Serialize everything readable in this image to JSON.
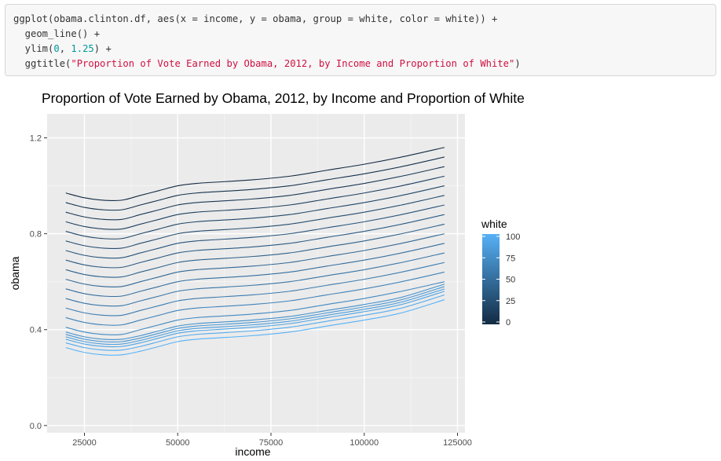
{
  "code": {
    "lines": [
      [
        {
          "t": "ggplot(obama.clinton.df, aes(x = income, y = obama, group = white, color = white)) +",
          "k": "plain"
        }
      ],
      [
        {
          "t": "  geom_line() +",
          "k": "plain"
        }
      ],
      [
        {
          "t": "  ylim(",
          "k": "plain"
        },
        {
          "t": "0",
          "k": "num"
        },
        {
          "t": ", ",
          "k": "plain"
        },
        {
          "t": "1.25",
          "k": "num"
        },
        {
          "t": ") +",
          "k": "plain"
        }
      ],
      [
        {
          "t": "  ggtitle(",
          "k": "plain"
        },
        {
          "t": "\"Proportion of Vote Earned by Obama, 2012, by Income and Proportion of White\"",
          "k": "str"
        },
        {
          "t": ")",
          "k": "plain"
        }
      ]
    ]
  },
  "colors": {
    "panel_bg": "#ebebeb",
    "grid_major": "#ffffff",
    "grid_minor": "#f5f5f5",
    "line_low": "#132b43",
    "line_high": "#56b1f7",
    "axis_text": "#4d4d4d"
  },
  "chart_data": {
    "type": "line",
    "title": "Proportion of Vote Earned by Obama, 2012, by Income and Proportion of White",
    "xlabel": "income",
    "ylabel": "obama",
    "xlim": [
      15000,
      127000
    ],
    "ylim": [
      -0.03,
      1.3
    ],
    "x_ticks": [
      25000,
      50000,
      75000,
      100000,
      125000
    ],
    "x_tick_labels": [
      "25000",
      "50000",
      "75000",
      "100000",
      "125000"
    ],
    "y_ticks": [
      0.0,
      0.4,
      0.8,
      1.2
    ],
    "y_tick_labels": [
      "0.0",
      "0.4",
      "0.8",
      "1.2"
    ],
    "grid": true,
    "legend": {
      "title": "white",
      "position": "right",
      "ticks": [
        0,
        25,
        50,
        75,
        100
      ],
      "tick_labels": [
        "0",
        "25",
        "50",
        "75",
        "100"
      ]
    },
    "x": [
      20000,
      25000,
      30000,
      35000,
      40000,
      45000,
      50000,
      55000,
      60000,
      70000,
      80000,
      90000,
      100000,
      110000,
      121500
    ],
    "series": [
      {
        "white": 0,
        "values": [
          0.97,
          0.95,
          0.94,
          0.94,
          0.96,
          0.98,
          1.0,
          1.01,
          1.015,
          1.025,
          1.04,
          1.065,
          1.09,
          1.12,
          1.16
        ]
      },
      {
        "white": 5,
        "values": [
          0.93,
          0.91,
          0.9,
          0.9,
          0.92,
          0.94,
          0.96,
          0.97,
          0.975,
          0.985,
          1.0,
          1.025,
          1.05,
          1.08,
          1.12
        ]
      },
      {
        "white": 10,
        "values": [
          0.89,
          0.87,
          0.86,
          0.86,
          0.88,
          0.9,
          0.92,
          0.93,
          0.935,
          0.945,
          0.96,
          0.985,
          1.01,
          1.04,
          1.08
        ]
      },
      {
        "white": 15,
        "values": [
          0.85,
          0.83,
          0.82,
          0.82,
          0.84,
          0.86,
          0.88,
          0.89,
          0.895,
          0.905,
          0.92,
          0.945,
          0.97,
          1.0,
          1.04
        ]
      },
      {
        "white": 20,
        "values": [
          0.81,
          0.79,
          0.78,
          0.78,
          0.8,
          0.82,
          0.84,
          0.85,
          0.855,
          0.865,
          0.88,
          0.905,
          0.93,
          0.96,
          1.0
        ]
      },
      {
        "white": 25,
        "values": [
          0.77,
          0.75,
          0.74,
          0.74,
          0.76,
          0.78,
          0.8,
          0.81,
          0.815,
          0.825,
          0.84,
          0.865,
          0.89,
          0.92,
          0.96
        ]
      },
      {
        "white": 30,
        "values": [
          0.73,
          0.71,
          0.7,
          0.7,
          0.72,
          0.74,
          0.76,
          0.77,
          0.775,
          0.785,
          0.8,
          0.825,
          0.85,
          0.88,
          0.92
        ]
      },
      {
        "white": 35,
        "values": [
          0.69,
          0.67,
          0.66,
          0.66,
          0.68,
          0.7,
          0.72,
          0.73,
          0.735,
          0.745,
          0.76,
          0.785,
          0.81,
          0.84,
          0.88
        ]
      },
      {
        "white": 40,
        "values": [
          0.65,
          0.63,
          0.62,
          0.62,
          0.64,
          0.66,
          0.68,
          0.69,
          0.695,
          0.705,
          0.72,
          0.745,
          0.77,
          0.8,
          0.84
        ]
      },
      {
        "white": 45,
        "values": [
          0.61,
          0.59,
          0.58,
          0.58,
          0.6,
          0.62,
          0.64,
          0.65,
          0.655,
          0.665,
          0.68,
          0.705,
          0.73,
          0.76,
          0.8
        ]
      },
      {
        "white": 50,
        "values": [
          0.57,
          0.55,
          0.54,
          0.54,
          0.56,
          0.58,
          0.6,
          0.61,
          0.615,
          0.625,
          0.64,
          0.665,
          0.69,
          0.72,
          0.76
        ]
      },
      {
        "white": 55,
        "values": [
          0.53,
          0.51,
          0.5,
          0.5,
          0.52,
          0.54,
          0.56,
          0.57,
          0.575,
          0.585,
          0.6,
          0.625,
          0.65,
          0.68,
          0.72
        ]
      },
      {
        "white": 60,
        "values": [
          0.49,
          0.47,
          0.46,
          0.46,
          0.48,
          0.5,
          0.52,
          0.53,
          0.535,
          0.545,
          0.56,
          0.585,
          0.61,
          0.64,
          0.68
        ]
      },
      {
        "white": 65,
        "values": [
          0.45,
          0.43,
          0.42,
          0.42,
          0.44,
          0.46,
          0.48,
          0.49,
          0.495,
          0.505,
          0.52,
          0.545,
          0.57,
          0.6,
          0.64
        ]
      },
      {
        "white": 70,
        "values": [
          0.41,
          0.39,
          0.38,
          0.38,
          0.4,
          0.42,
          0.44,
          0.45,
          0.455,
          0.465,
          0.48,
          0.505,
          0.53,
          0.56,
          0.6
        ]
      },
      {
        "white": 75,
        "values": [
          0.39,
          0.37,
          0.36,
          0.36,
          0.375,
          0.395,
          0.415,
          0.425,
          0.43,
          0.44,
          0.455,
          0.48,
          0.505,
          0.535,
          0.59
        ]
      },
      {
        "white": 80,
        "values": [
          0.38,
          0.36,
          0.35,
          0.35,
          0.365,
          0.385,
          0.405,
          0.415,
          0.42,
          0.43,
          0.445,
          0.47,
          0.495,
          0.525,
          0.58
        ]
      },
      {
        "white": 85,
        "values": [
          0.37,
          0.35,
          0.34,
          0.34,
          0.355,
          0.375,
          0.395,
          0.405,
          0.41,
          0.42,
          0.435,
          0.46,
          0.485,
          0.515,
          0.57
        ]
      },
      {
        "white": 90,
        "values": [
          0.36,
          0.34,
          0.33,
          0.33,
          0.345,
          0.365,
          0.385,
          0.395,
          0.4,
          0.41,
          0.425,
          0.45,
          0.475,
          0.505,
          0.56
        ]
      },
      {
        "white": 95,
        "values": [
          0.345,
          0.325,
          0.315,
          0.315,
          0.33,
          0.35,
          0.37,
          0.38,
          0.385,
          0.395,
          0.41,
          0.435,
          0.46,
          0.49,
          0.545
        ]
      },
      {
        "white": 100,
        "values": [
          0.325,
          0.305,
          0.295,
          0.295,
          0.31,
          0.33,
          0.35,
          0.36,
          0.365,
          0.375,
          0.39,
          0.415,
          0.44,
          0.47,
          0.525
        ]
      }
    ]
  }
}
